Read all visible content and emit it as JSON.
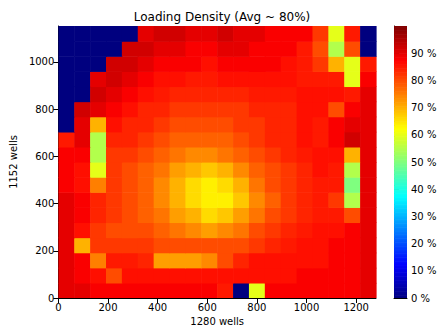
{
  "chart_data": {
    "type": "heatmap",
    "title": "Loading Density (Avg ~ 80%)",
    "x_label": "1280 wells",
    "y_label": "1152 wells",
    "xlim": [
      0,
      1280
    ],
    "ylim": [
      0,
      1152
    ],
    "xticks": [
      0,
      200,
      400,
      600,
      800,
      1000,
      1200
    ],
    "yticks": [
      0,
      200,
      400,
      600,
      800,
      1000
    ],
    "grid": false,
    "x": [
      32,
      96,
      160,
      224,
      288,
      352,
      416,
      480,
      544,
      608,
      672,
      736,
      800,
      864,
      928,
      992,
      1056,
      1120,
      1184,
      1248
    ],
    "y": [
      32,
      96,
      160,
      224,
      288,
      352,
      416,
      480,
      544,
      608,
      672,
      736,
      800,
      864,
      928,
      992,
      1056,
      1120
    ],
    "cells": [
      [
        90,
        90,
        88,
        88,
        88,
        88,
        88,
        88,
        88,
        88,
        85,
        0,
        60,
        88,
        88,
        88,
        88,
        88,
        88,
        90
      ],
      [
        90,
        88,
        86,
        80,
        86,
        86,
        86,
        86,
        86,
        86,
        86,
        86,
        86,
        86,
        86,
        88,
        88,
        88,
        88,
        90
      ],
      [
        90,
        88,
        75,
        85,
        85,
        84,
        72,
        72,
        72,
        74,
        80,
        84,
        86,
        86,
        86,
        86,
        86,
        88,
        88,
        90
      ],
      [
        90,
        70,
        82,
        82,
        82,
        82,
        80,
        80,
        80,
        80,
        80,
        80,
        82,
        84,
        85,
        86,
        86,
        88,
        88,
        90
      ],
      [
        90,
        86,
        82,
        80,
        80,
        80,
        78,
        76,
        74,
        72,
        74,
        76,
        80,
        82,
        84,
        85,
        86,
        86,
        88,
        90
      ],
      [
        90,
        88,
        84,
        82,
        80,
        78,
        76,
        72,
        70,
        66,
        68,
        72,
        76,
        80,
        82,
        84,
        85,
        85,
        80,
        90
      ],
      [
        90,
        88,
        84,
        82,
        80,
        78,
        74,
        70,
        66,
        64,
        64,
        68,
        74,
        78,
        82,
        84,
        85,
        82,
        55,
        90
      ],
      [
        88,
        86,
        75,
        82,
        80,
        78,
        74,
        70,
        66,
        64,
        66,
        70,
        76,
        80,
        82,
        84,
        85,
        85,
        50,
        90
      ],
      [
        88,
        86,
        60,
        82,
        80,
        78,
        76,
        72,
        70,
        68,
        70,
        74,
        78,
        80,
        82,
        84,
        86,
        85,
        55,
        90
      ],
      [
        88,
        88,
        55,
        82,
        82,
        80,
        78,
        76,
        74,
        74,
        76,
        78,
        80,
        82,
        84,
        85,
        86,
        86,
        70,
        90
      ],
      [
        85,
        90,
        55,
        84,
        84,
        82,
        80,
        78,
        78,
        78,
        78,
        80,
        82,
        84,
        84,
        86,
        85,
        88,
        92,
        90
      ],
      [
        0,
        90,
        70,
        86,
        84,
        84,
        82,
        80,
        80,
        80,
        80,
        82,
        82,
        84,
        84,
        86,
        85,
        88,
        90,
        90
      ],
      [
        0,
        92,
        90,
        88,
        86,
        84,
        84,
        82,
        82,
        82,
        82,
        82,
        84,
        84,
        84,
        86,
        86,
        80,
        88,
        90
      ],
      [
        0,
        0,
        92,
        90,
        88,
        86,
        85,
        84,
        84,
        84,
        84,
        84,
        85,
        85,
        85,
        86,
        86,
        86,
        85,
        90
      ],
      [
        0,
        0,
        90,
        92,
        90,
        88,
        86,
        86,
        85,
        85,
        86,
        86,
        86,
        86,
        86,
        85,
        85,
        85,
        60,
        88
      ],
      [
        0,
        0,
        0,
        92,
        92,
        90,
        88,
        88,
        88,
        86,
        88,
        88,
        88,
        88,
        86,
        85,
        82,
        70,
        60,
        85
      ],
      [
        0,
        0,
        0,
        0,
        92,
        92,
        90,
        90,
        88,
        88,
        90,
        90,
        88,
        88,
        88,
        85,
        80,
        55,
        80,
        0
      ],
      [
        0,
        0,
        0,
        0,
        0,
        90,
        92,
        92,
        90,
        90,
        92,
        90,
        90,
        88,
        88,
        88,
        82,
        60,
        85,
        0
      ]
    ],
    "colorbar": {
      "range": [
        0,
        100
      ],
      "ticks": [
        {
          "value": 0,
          "label": "0 %"
        },
        {
          "value": 10,
          "label": "10 %"
        },
        {
          "value": 20,
          "label": "20 %"
        },
        {
          "value": 30,
          "label": "30 %"
        },
        {
          "value": 40,
          "label": "40 %"
        },
        {
          "value": 50,
          "label": "50 %"
        },
        {
          "value": 60,
          "label": "60 %"
        },
        {
          "value": 70,
          "label": "70 %"
        },
        {
          "value": 80,
          "label": "80 %"
        },
        {
          "value": 90,
          "label": "90 %"
        }
      ]
    }
  }
}
